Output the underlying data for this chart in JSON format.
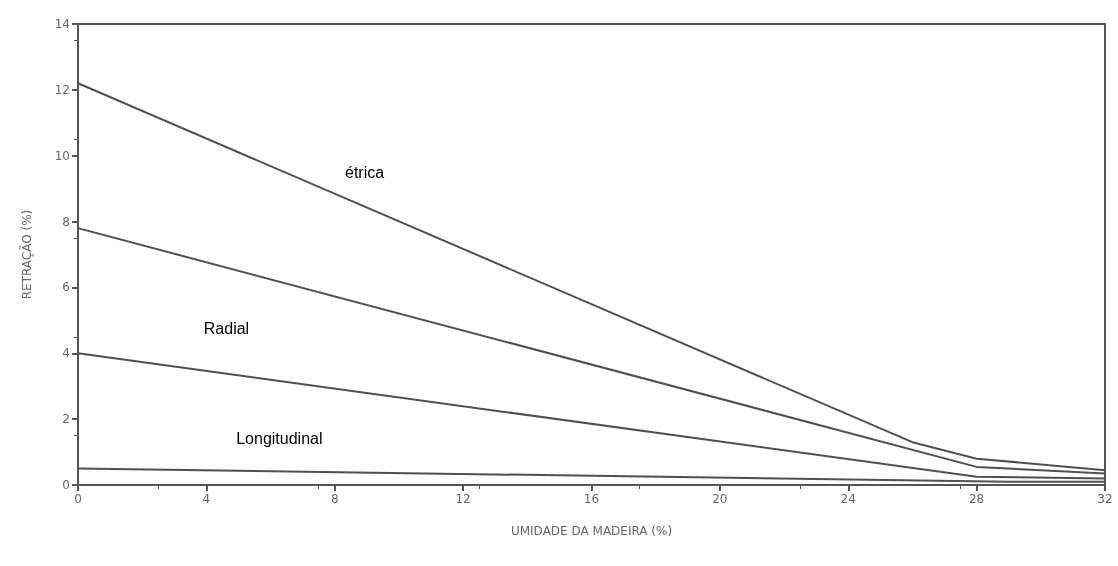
{
  "chart_data": {
    "type": "line",
    "xlabel": "UMIDADE DA MADEIRA (%)",
    "ylabel": "RETRAÇÃO (%)",
    "xlim": [
      0,
      32
    ],
    "xticks": [
      0,
      4,
      8,
      12,
      16,
      20,
      24,
      28,
      32
    ],
    "ylim": [
      0,
      14
    ],
    "yticks": [
      0,
      2,
      4,
      6,
      8,
      10,
      12,
      14
    ],
    "grid": false,
    "marker": "none",
    "line_style": "solid",
    "series": [
      {
        "name": "étrica",
        "color": "#505050",
        "x": [
          0,
          26,
          28,
          32
        ],
        "values": [
          12.2,
          1.3,
          0.8,
          0.45
        ]
      },
      {
        "color": "#505050",
        "x": [
          0,
          28,
          32
        ],
        "values": [
          7.8,
          0.55,
          0.35
        ]
      },
      {
        "name": "Radial",
        "color": "#505050",
        "x": [
          0,
          28,
          32
        ],
        "values": [
          4.0,
          0.25,
          0.2
        ]
      },
      {
        "name": "Longitudinal",
        "color": "#505050",
        "x": [
          0,
          29,
          32
        ],
        "values": [
          0.5,
          0.1,
          0.1
        ]
      }
    ]
  }
}
